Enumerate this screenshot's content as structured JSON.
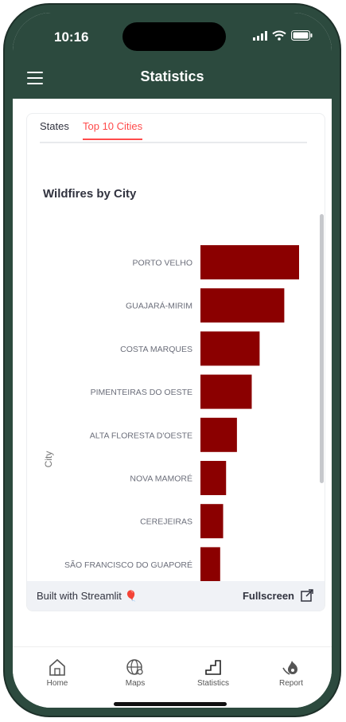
{
  "status": {
    "time": "10:16"
  },
  "header": {
    "title": "Statistics"
  },
  "tabs": [
    {
      "label": "States"
    },
    {
      "label": "Top 10 Cities"
    }
  ],
  "chart_data": {
    "type": "bar",
    "orientation": "horizontal",
    "title": "Wildfires by City",
    "ylabel": "City",
    "categories": [
      "PORTO VELHO",
      "GUAJARÁ-MIRIM",
      "COSTA MARQUES",
      "PIMENTEIRAS DO OESTE",
      "ALTA FLORESTA D'OESTE",
      "NOVA MAMORÉ",
      "CEREJEIRAS",
      "SÃO FRANCISCO DO GUAPORÉ"
    ],
    "values": [
      100,
      85,
      60,
      52,
      37,
      26,
      23,
      20
    ],
    "color": "#8b0000"
  },
  "footer": {
    "built_with": "Built with Streamlit",
    "fullscreen": "Fullscreen"
  },
  "nav": [
    {
      "label": "Home"
    },
    {
      "label": "Maps"
    },
    {
      "label": "Statistics"
    },
    {
      "label": "Report"
    }
  ],
  "colors": {
    "header": "#2c4a3e",
    "accent": "#ff4b4b"
  }
}
